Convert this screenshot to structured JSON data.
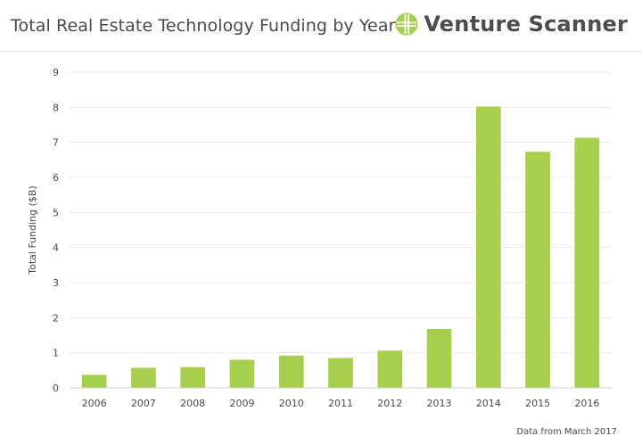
{
  "header": {
    "title": "Total Real Estate Technology Funding by Year",
    "brand_name": "Venture Scanner",
    "brand_icon": "venture-scanner-logo-icon"
  },
  "footer": {
    "source_note": "Data from March 2017"
  },
  "chart_data": {
    "type": "bar",
    "title": "Total Real Estate Technology Funding by Year",
    "xlabel": "",
    "ylabel": "Total Funding ($B)",
    "categories": [
      "2006",
      "2007",
      "2008",
      "2009",
      "2010",
      "2011",
      "2012",
      "2013",
      "2014",
      "2015",
      "2016"
    ],
    "values": [
      0.37,
      0.57,
      0.59,
      0.8,
      0.92,
      0.85,
      1.06,
      1.68,
      8.02,
      6.73,
      7.13
    ],
    "ylim": [
      0,
      9
    ],
    "yticks": [
      "0",
      "1",
      "2",
      "3",
      "4",
      "5",
      "6",
      "7",
      "8",
      "9"
    ],
    "grid": true,
    "bar_color": "#a6cf4b",
    "grid_color": "#ececec"
  }
}
